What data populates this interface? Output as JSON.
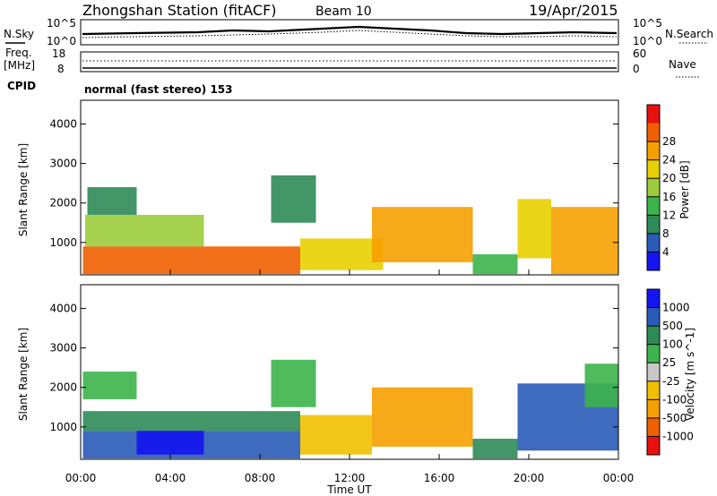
{
  "header": {
    "station": "Zhongshan Station (fitACF)",
    "beam": "Beam 10",
    "date": "19/Apr/2015"
  },
  "summary_panel": {
    "left_label": "N.Sky",
    "right_label": "N.Search",
    "left_ticks": [
      "10^5",
      "10^0"
    ],
    "right_ticks": [
      "10^5",
      "10^0"
    ]
  },
  "freq_panel": {
    "left_label_1": "Freq.",
    "left_label_2": "[MHz]",
    "right_label": "Nave",
    "left_ticks": [
      "18",
      "8"
    ],
    "right_ticks": [
      "60",
      "0"
    ]
  },
  "cpid": {
    "label": "CPID",
    "mode": "normal (fast stereo) 153"
  },
  "chart_data": [
    {
      "type": "heatmap",
      "quantity": "Power",
      "ylabel": "Slant Range [km]",
      "xlabel": "",
      "colorbar_label": "Power [dB]",
      "ylim": [
        180,
        4600
      ],
      "y_ticks": [
        1000,
        2000,
        3000,
        4000
      ],
      "colorbar_ticks": [
        "4",
        "8",
        "12",
        "16",
        "20",
        "24",
        "28"
      ],
      "colorbar_colors": [
        "#1414f0",
        "#2a5bb8",
        "#2e8b57",
        "#3cb44b",
        "#9ccc3c",
        "#e8d000",
        "#f5a000",
        "#f06000",
        "#e81010"
      ],
      "echo_regions": [
        {
          "t_start": 0.1,
          "t_end": 9.8,
          "range_min": 200,
          "range_max": 900,
          "level": "28"
        },
        {
          "t_start": 0.2,
          "t_end": 5.5,
          "range_min": 900,
          "range_max": 1700,
          "level": "16"
        },
        {
          "t_start": 0.3,
          "t_end": 2.5,
          "range_min": 1700,
          "range_max": 2400,
          "level": "8"
        },
        {
          "t_start": 8.5,
          "t_end": 10.5,
          "range_min": 1500,
          "range_max": 2700,
          "level": "8"
        },
        {
          "t_start": 9.8,
          "t_end": 13.5,
          "range_min": 300,
          "range_max": 1100,
          "level": "20"
        },
        {
          "t_start": 13.0,
          "t_end": 17.5,
          "range_min": 500,
          "range_max": 1900,
          "level": "24"
        },
        {
          "t_start": 17.5,
          "t_end": 19.5,
          "range_min": 200,
          "range_max": 700,
          "level": "12"
        },
        {
          "t_start": 19.5,
          "t_end": 21.0,
          "range_min": 600,
          "range_max": 2100,
          "level": "20"
        },
        {
          "t_start": 21.0,
          "t_end": 24.0,
          "range_min": 200,
          "range_max": 1900,
          "level": "24"
        }
      ]
    },
    {
      "type": "heatmap",
      "quantity": "Velocity",
      "ylabel": "Slant Range [km]",
      "xlabel": "Time UT",
      "colorbar_label": "Velocity [m s^-1]",
      "ylim": [
        180,
        4600
      ],
      "y_ticks": [
        1000,
        2000,
        3000,
        4000
      ],
      "x_ticks": [
        "00:00",
        "04:00",
        "08:00",
        "12:00",
        "16:00",
        "20:00",
        "00:00"
      ],
      "colorbar_ticks": [
        "-1000",
        "-500",
        "-100",
        "-25",
        "25",
        "100",
        "500",
        "1000"
      ],
      "colorbar_colors": [
        "#e81010",
        "#f06000",
        "#f5a000",
        "#f0c000",
        "#c8c8c8",
        "#3cb44b",
        "#2e8b57",
        "#2a5bb8",
        "#1414f0"
      ],
      "echo_regions": [
        {
          "t_start": 0.1,
          "t_end": 2.5,
          "range_min": 1700,
          "range_max": 2400,
          "level": "25"
        },
        {
          "t_start": 0.1,
          "t_end": 9.8,
          "range_min": 900,
          "range_max": 1400,
          "level": "100"
        },
        {
          "t_start": 0.1,
          "t_end": 9.8,
          "range_min": 200,
          "range_max": 900,
          "level": "500"
        },
        {
          "t_start": 2.5,
          "t_end": 5.5,
          "range_min": 300,
          "range_max": 900,
          "level": "1000"
        },
        {
          "t_start": 8.5,
          "t_end": 10.5,
          "range_min": 1500,
          "range_max": 2700,
          "level": "25"
        },
        {
          "t_start": 9.8,
          "t_end": 13.0,
          "range_min": 300,
          "range_max": 1300,
          "level": "-100"
        },
        {
          "t_start": 13.0,
          "t_end": 17.5,
          "range_min": 500,
          "range_max": 2000,
          "level": "-500"
        },
        {
          "t_start": 17.5,
          "t_end": 19.5,
          "range_min": 200,
          "range_max": 700,
          "level": "100"
        },
        {
          "t_start": 19.5,
          "t_end": 24.0,
          "range_min": 400,
          "range_max": 2100,
          "level": "500"
        },
        {
          "t_start": 22.5,
          "t_end": 24.0,
          "range_min": 1500,
          "range_max": 2600,
          "level": "25"
        }
      ]
    }
  ]
}
